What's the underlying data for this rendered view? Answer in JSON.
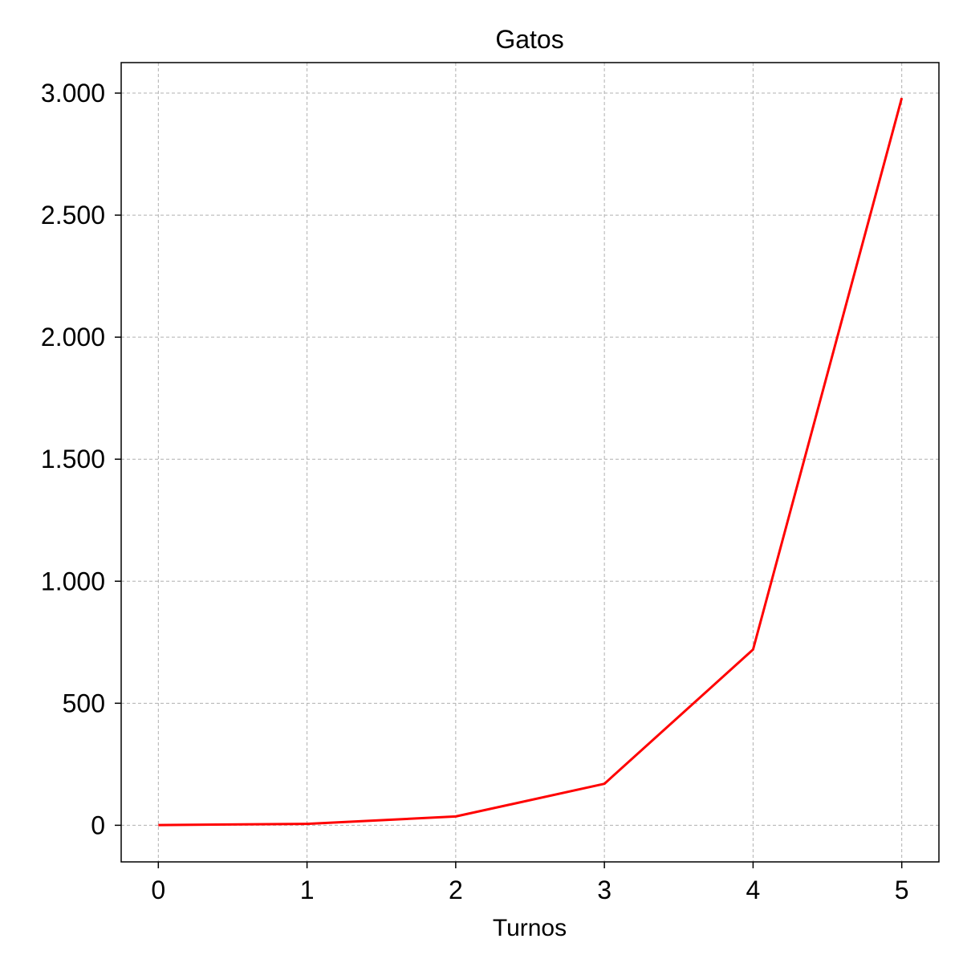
{
  "chart_data": {
    "type": "line",
    "title": "Gatos",
    "xlabel": "Turnos",
    "ylabel": "",
    "x": [
      0,
      1,
      2,
      3,
      4,
      5
    ],
    "x_tick_labels": [
      "0",
      "1",
      "2",
      "3",
      "4",
      "5"
    ],
    "y_ticks": [
      0,
      500,
      1000,
      1500,
      2000,
      2500,
      3000
    ],
    "y_tick_labels": [
      "0",
      "500",
      "1.000",
      "1.500",
      "2.000",
      "2.500",
      "3.000"
    ],
    "xlim": [
      -0.25,
      5.25
    ],
    "ylim": [
      -150,
      3125
    ],
    "grid": true,
    "series": [
      {
        "values": [
          1,
          6,
          36,
          170,
          720,
          2980
        ],
        "color": "#ff0000"
      }
    ]
  }
}
